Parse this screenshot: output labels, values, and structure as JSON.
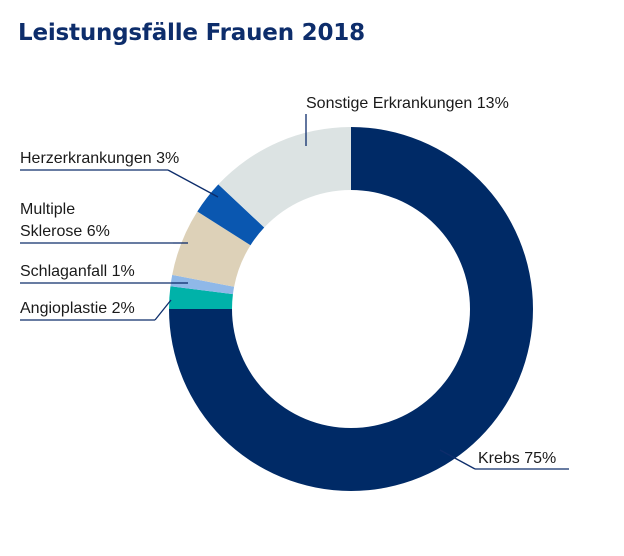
{
  "chart_data": {
    "type": "pie",
    "title": "Leistungsfälle Frauen 2018",
    "donut": true,
    "slices": [
      {
        "label": "Krebs 75%",
        "value": 75,
        "color": "#002a66"
      },
      {
        "label": "Angioplastie 2%",
        "value": 2,
        "color": "#00b2a9"
      },
      {
        "label": "Schlaganfall 1%",
        "value": 1,
        "color": "#8fb8e8"
      },
      {
        "label_lines": [
          "Multiple",
          "Sklerose 6%"
        ],
        "value": 6,
        "color": "#ddd1b8"
      },
      {
        "label": "Herzerkrankungen 3%",
        "value": 3,
        "color": "#0a57b0"
      },
      {
        "label": "Sonstige Erkrankungen 13%",
        "value": 13,
        "color": "#dce3e3"
      }
    ]
  }
}
